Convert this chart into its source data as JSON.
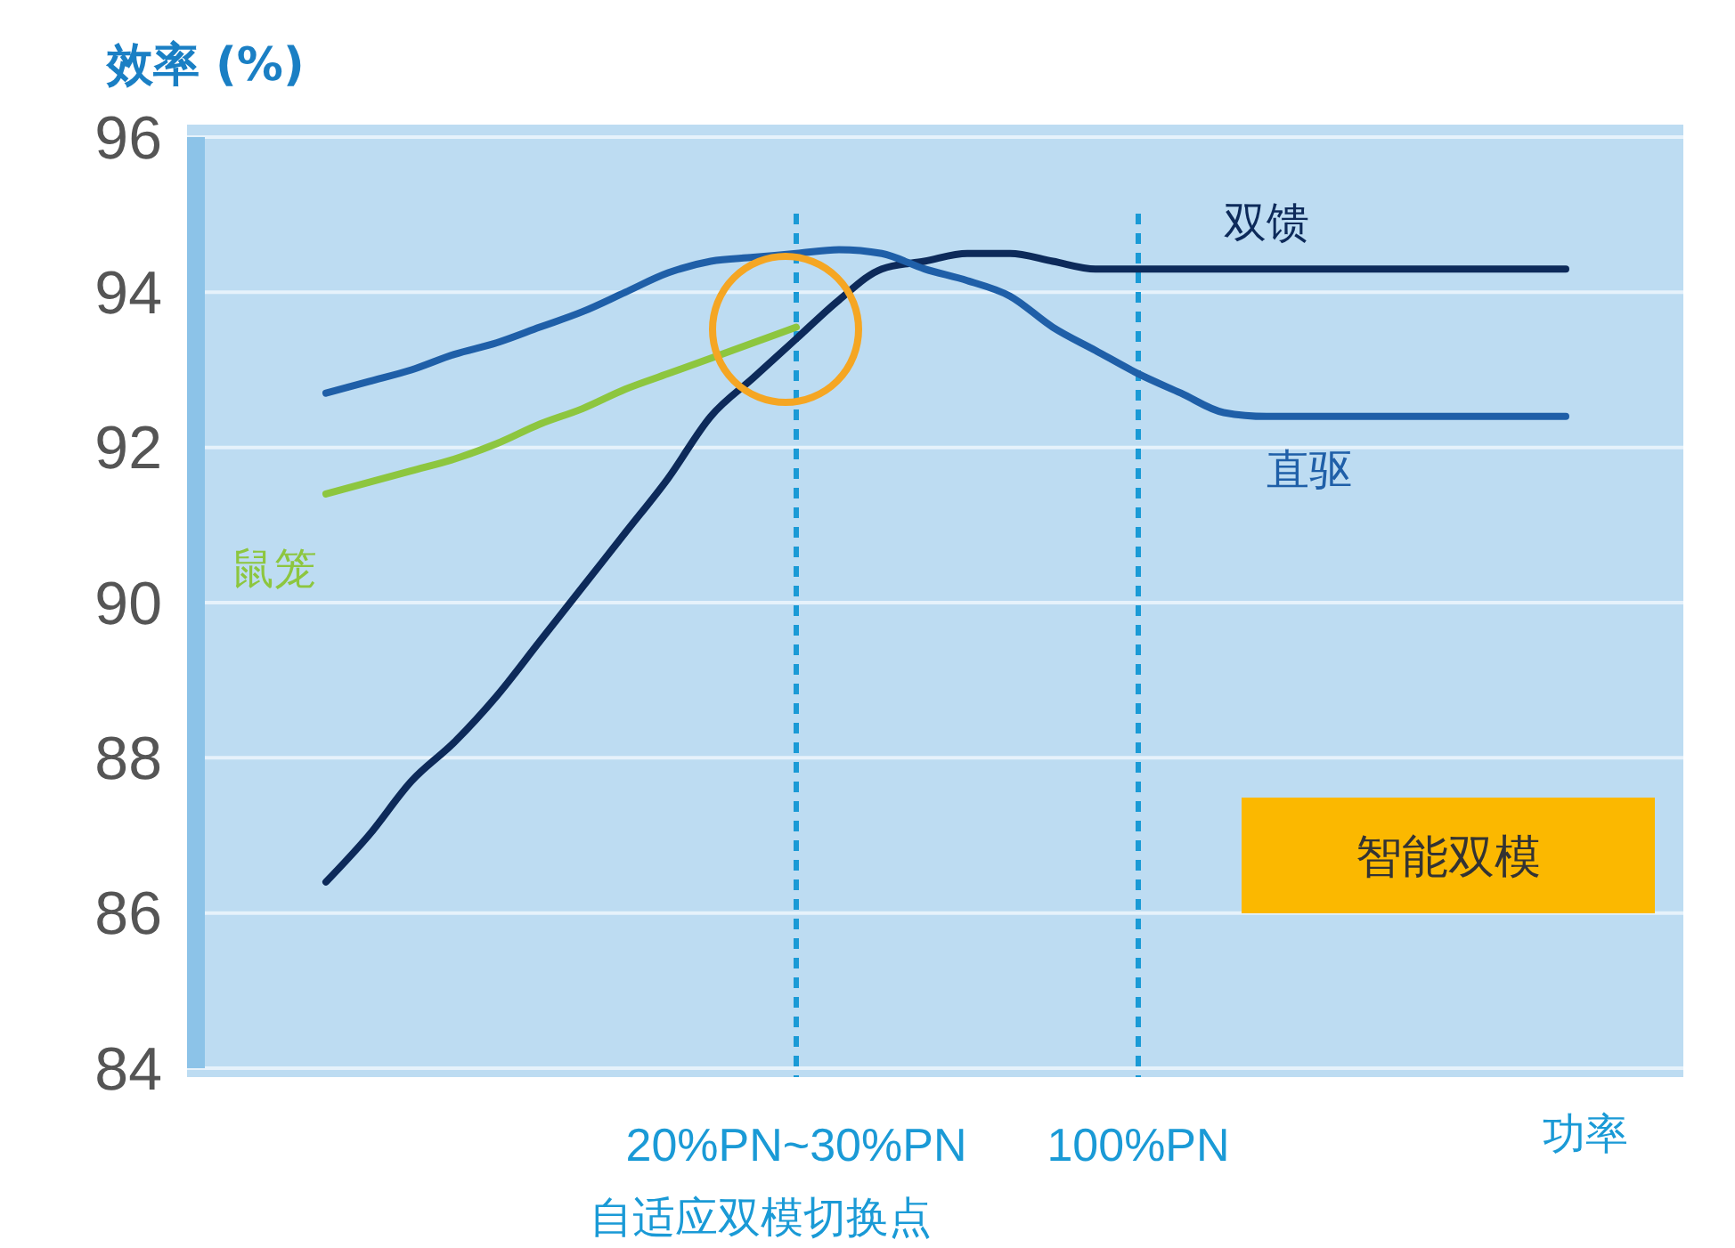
{
  "chart_data": {
    "type": "line",
    "ylabel": "效率 (%)",
    "xlabel": "功率",
    "categories": [
      null,
      null,
      null,
      null,
      null,
      null,
      null,
      null,
      null,
      null,
      null,
      "20%PN~30%PN",
      null,
      null,
      null,
      null,
      null,
      null,
      null,
      "100%PN",
      null,
      null,
      null,
      null,
      null,
      null,
      null,
      null,
      null,
      null
    ],
    "series": [
      {
        "name": "双馈",
        "color": "#0d2a5a",
        "values": [
          86.4,
          87.0,
          87.7,
          88.2,
          88.8,
          89.5,
          90.2,
          90.9,
          91.6,
          92.4,
          92.9,
          93.4,
          93.9,
          94.3,
          94.4,
          94.5,
          94.5,
          94.4,
          94.3,
          94.3,
          94.3,
          94.3,
          94.3,
          94.3,
          94.3,
          94.3,
          94.3,
          94.3,
          94.3,
          94.3
        ]
      },
      {
        "name": "直驱",
        "color": "#1f5fa8",
        "values": [
          92.7,
          92.85,
          93.0,
          93.2,
          93.35,
          93.55,
          93.75,
          94.0,
          94.25,
          94.4,
          94.45,
          94.5,
          94.55,
          94.5,
          94.3,
          94.15,
          93.95,
          93.55,
          93.25,
          92.95,
          92.7,
          92.45,
          92.4,
          92.4,
          92.4,
          92.4,
          92.4,
          92.4,
          92.4,
          92.4
        ]
      },
      {
        "name": "鼠笼",
        "color": "#8dc63f",
        "values": [
          91.4,
          91.55,
          91.7,
          91.85,
          92.05,
          92.3,
          92.5,
          92.75,
          92.95,
          93.15,
          93.35,
          93.55,
          null,
          null,
          null,
          null,
          null,
          null,
          null,
          null,
          null,
          null,
          null,
          null,
          null,
          null,
          null,
          null,
          null,
          null
        ]
      }
    ],
    "ylim": [
      84,
      96
    ],
    "yticks": [
      84,
      86,
      88,
      90,
      92,
      94,
      96
    ],
    "grid": "y",
    "ref_lines": [
      {
        "axis": "x",
        "value": "20%PN~30%PN",
        "label": "自适应双模切换点",
        "color": "#1a9ad6",
        "line_style": "dashed"
      },
      {
        "axis": "x",
        "value": "100%PN",
        "label": null,
        "color": "#1a9ad6",
        "line_style": "dashed"
      }
    ],
    "annotations": [
      "智能双模"
    ]
  }
}
